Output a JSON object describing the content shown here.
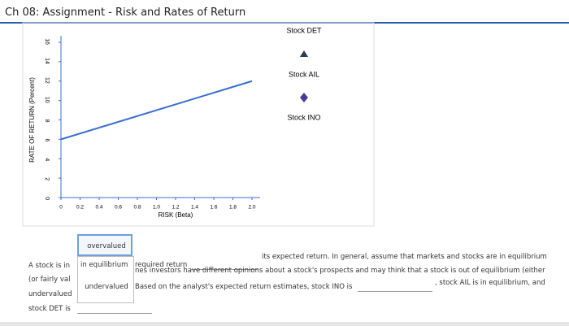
{
  "header": {
    "title": "Ch 08: Assignment - Risk and Rates of Return"
  },
  "chart_data": {
    "type": "line",
    "x_label": "RISK (Beta)",
    "y_label": "RATE OF RETURN (Percent)",
    "x": [
      0,
      2
    ],
    "values": [
      6,
      12
    ],
    "color": "#3a6fd0",
    "xlim": [
      0,
      2
    ],
    "ylim": [
      0,
      16
    ],
    "xticks": [
      0,
      0.2,
      0.4,
      0.6,
      0.8,
      {
        "value": 1,
        "label": "1.0"
      },
      1.2,
      1.4,
      1.6,
      1.8,
      {
        "value": 2,
        "label": "2.0"
      }
    ],
    "yticks": [
      0,
      2,
      4,
      6,
      8,
      10,
      12,
      14,
      16
    ]
  },
  "legend": {
    "items": [
      "Stock DET",
      "Stock AIL",
      "Stock INO"
    ]
  },
  "dropdown": {
    "options": [
      "overvalued",
      "in equilibrium",
      "undervalued"
    ]
  },
  "question": {
    "parts": [
      "A stock is in",
      "required return",
      "its expected return. In general, assume that markets and stocks are in equilibrium",
      "(or fairly val",
      "nes investors have different opinions about a stock's prospects and may think that a stock is out of equilibrium (either",
      "undervalued",
      "Based on the analyst's expected return estimates, stock INO is",
      ", stock AIL is in equilibrium, and",
      "stock DET is"
    ]
  }
}
